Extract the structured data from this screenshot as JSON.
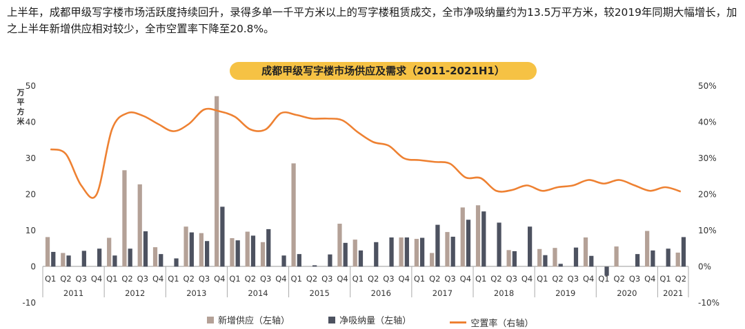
{
  "intro_text": "上半年，成都甲级写字楼市场活跃度持续回升，录得多单一千平方米以上的写字楼租赁成交，全市净吸纳量约为13.5万平方米，较2019年同期大幅增长，加之上半年新增供应相对较少，全市空置率下降至20.8%。",
  "colors": {
    "supply": "#B4A197",
    "absorption": "#4D5260",
    "vacancy": "#EE8132",
    "title_bg": "#F6C244"
  },
  "chart_data": {
    "type": "bar+line",
    "title": "成都甲级写字楼市场供应及需求（2011-2021H1）",
    "ylabel_left": "万平方米",
    "ylim_left": [
      -10,
      50
    ],
    "yticks_left": [
      "-10",
      "0",
      "10",
      "20",
      "30",
      "40",
      "50"
    ],
    "ylim_right": [
      -10,
      50
    ],
    "yticks_right": [
      "-10%",
      "0%",
      "10%",
      "20%",
      "30%",
      "40%",
      "50%"
    ],
    "quarters": [
      "Q1",
      "Q2",
      "Q3",
      "Q4",
      "Q1",
      "Q2",
      "Q3",
      "Q4",
      "Q1",
      "Q2",
      "Q3",
      "Q4",
      "Q1",
      "Q2",
      "Q3",
      "Q4",
      "Q1",
      "Q2",
      "Q3",
      "Q4",
      "Q1",
      "Q2",
      "Q3",
      "Q4",
      "Q1",
      "Q2",
      "Q3",
      "Q4",
      "Q1",
      "Q2",
      "Q3",
      "Q4",
      "Q1",
      "Q2",
      "Q3",
      "Q4",
      "Q1",
      "Q2",
      "Q3",
      "Q4",
      "Q1",
      "Q2"
    ],
    "years": [
      {
        "label": "2011",
        "quarters": 4
      },
      {
        "label": "2012",
        "quarters": 4
      },
      {
        "label": "2013",
        "quarters": 4
      },
      {
        "label": "2014",
        "quarters": 4
      },
      {
        "label": "2015",
        "quarters": 4
      },
      {
        "label": "2016",
        "quarters": 4
      },
      {
        "label": "2017",
        "quarters": 4
      },
      {
        "label": "2018",
        "quarters": 4
      },
      {
        "label": "2019",
        "quarters": 4
      },
      {
        "label": "2020",
        "quarters": 4
      },
      {
        "label": "2021",
        "quarters": 2
      }
    ],
    "series": [
      {
        "name": "新增供应（左轴）",
        "type": "bar",
        "values": [
          8.2,
          3.8,
          0,
          0,
          8.0,
          26.7,
          22.8,
          5.4,
          0,
          11.1,
          9.3,
          47.2,
          7.9,
          9.7,
          6.8,
          0,
          28.6,
          0,
          0,
          11.9,
          7.5,
          0,
          0,
          8.1,
          7.7,
          3.8,
          9.6,
          16.4,
          17.0,
          0,
          4.6,
          0,
          4.9,
          5.2,
          0,
          8.1,
          0,
          5.6,
          0,
          9.9,
          0,
          3.9
        ]
      },
      {
        "name": "净吸纳量（左轴）",
        "type": "bar",
        "values": [
          4.1,
          3.1,
          4.4,
          5.0,
          3.1,
          5.0,
          9.8,
          3.5,
          2.3,
          9.5,
          7.1,
          16.6,
          7.3,
          8.6,
          10.4,
          3.1,
          3.5,
          0.4,
          3.4,
          6.6,
          4.5,
          6.8,
          8.1,
          8.1,
          8.0,
          11.6,
          8.3,
          13.0,
          15.3,
          12.2,
          4.3,
          11.1,
          3.2,
          0.8,
          5.3,
          3.0,
          -2.5,
          0,
          3.5,
          4.5,
          5.0,
          8.2
        ]
      },
      {
        "name": "空置率（右轴）",
        "type": "line",
        "unit": "%",
        "values": [
          32.5,
          31.2,
          22.5,
          20.0,
          38.0,
          42.5,
          41.8,
          39.5,
          37.5,
          39.5,
          43.5,
          43.0,
          41.5,
          38.0,
          38.0,
          42.5,
          42.0,
          41.0,
          41.0,
          40.5,
          37.2,
          34.5,
          33.5,
          30.0,
          29.5,
          29.0,
          28.5,
          24.7,
          24.5,
          21.0,
          21.2,
          22.5,
          21.0,
          22.0,
          22.5,
          24.0,
          23.0,
          24.0,
          22.5,
          21.0,
          22.0,
          20.8
        ]
      }
    ],
    "legend_position": "bottom",
    "grid": false
  }
}
